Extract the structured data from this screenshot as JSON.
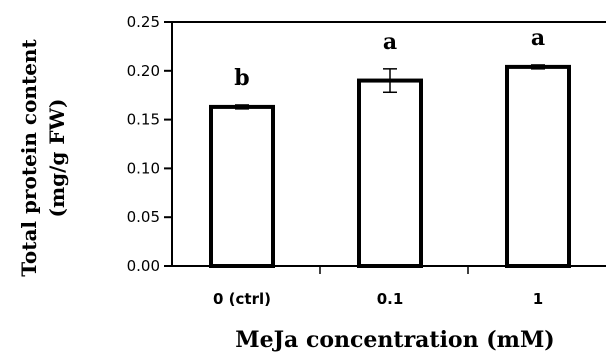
{
  "chart_data": {
    "type": "bar",
    "categories": [
      "0 (ctrl)",
      "0.1",
      "1"
    ],
    "values": [
      0.163,
      0.19,
      0.204
    ],
    "errors": [
      0.002,
      0.012,
      0.002
    ],
    "significance": [
      "b",
      "a",
      "a"
    ],
    "xlabel": "MeJa concentration (mM)",
    "ylabel_line1": "Total protein content",
    "ylabel_line2": "(mg/g FW)",
    "ylim": [
      0,
      0.25
    ],
    "yticks": [
      "0.00",
      "0.05",
      "0.10",
      "0.15",
      "0.20",
      "0.25"
    ],
    "grid": false,
    "bar_fill": "#ffffff",
    "bar_stroke": "#000000"
  }
}
